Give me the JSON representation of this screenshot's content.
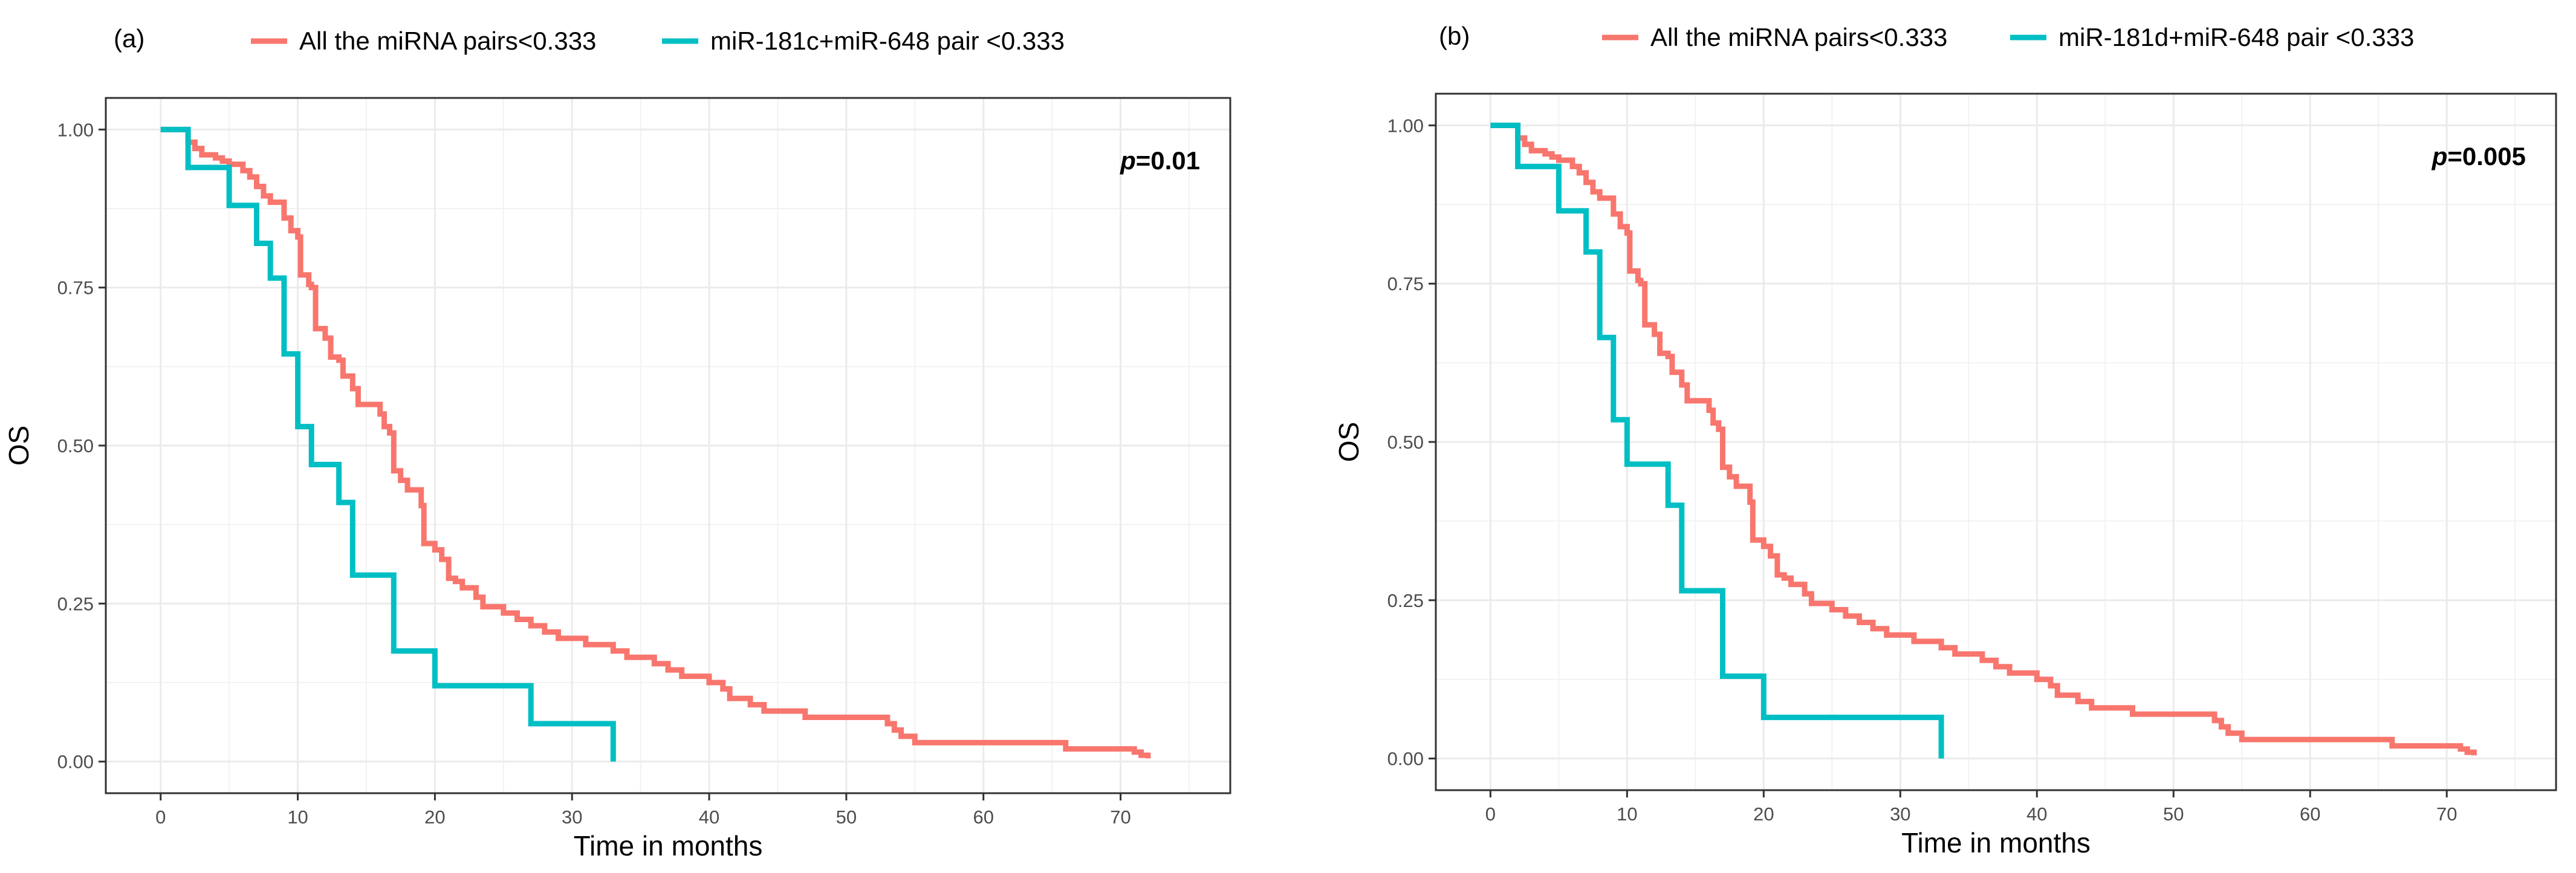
{
  "chart_data": [
    {
      "type": "line",
      "step": true,
      "panel_label": "(a)",
      "xlabel": "Time in months",
      "ylabel": "OS",
      "xlim": [
        -4,
        78
      ],
      "ylim": [
        -0.05,
        1.05
      ],
      "x_ticks": [
        0,
        10,
        20,
        30,
        40,
        50,
        60,
        70
      ],
      "y_ticks": [
        0.0,
        0.25,
        0.5,
        0.75,
        1.0
      ],
      "y_tick_labels": [
        "0.00",
        "0.25",
        "0.50",
        "0.75",
        "1.00"
      ],
      "grid": true,
      "legend_position": "top",
      "annotation": {
        "label": "p",
        "value": "=0.01"
      },
      "series": [
        {
          "name": "All the miRNA pairs<0.333",
          "color": "#F8766D",
          "points": [
            [
              0,
              1.0
            ],
            [
              2,
              0.98
            ],
            [
              2.5,
              0.97
            ],
            [
              3,
              0.96
            ],
            [
              4,
              0.955
            ],
            [
              4.5,
              0.95
            ],
            [
              5,
              0.945
            ],
            [
              6,
              0.935
            ],
            [
              6.5,
              0.925
            ],
            [
              7,
              0.91
            ],
            [
              7.5,
              0.895
            ],
            [
              8,
              0.885
            ],
            [
              9,
              0.86
            ],
            [
              9.5,
              0.84
            ],
            [
              10,
              0.83
            ],
            [
              10.2,
              0.77
            ],
            [
              10.8,
              0.755
            ],
            [
              11,
              0.75
            ],
            [
              11.3,
              0.685
            ],
            [
              12,
              0.67
            ],
            [
              12.4,
              0.64
            ],
            [
              13,
              0.635
            ],
            [
              13.3,
              0.61
            ],
            [
              14,
              0.59
            ],
            [
              14.4,
              0.565
            ],
            [
              15,
              0.565
            ],
            [
              16,
              0.55
            ],
            [
              16.3,
              0.53
            ],
            [
              16.7,
              0.52
            ],
            [
              17,
              0.46
            ],
            [
              17.5,
              0.445
            ],
            [
              18,
              0.43
            ],
            [
              19,
              0.405
            ],
            [
              19.2,
              0.345
            ],
            [
              20,
              0.335
            ],
            [
              20.5,
              0.32
            ],
            [
              21,
              0.29
            ],
            [
              21.5,
              0.285
            ],
            [
              22,
              0.275
            ],
            [
              23,
              0.26
            ],
            [
              23.5,
              0.245
            ],
            [
              25,
              0.235
            ],
            [
              26,
              0.225
            ],
            [
              27,
              0.215
            ],
            [
              28,
              0.205
            ],
            [
              29,
              0.195
            ],
            [
              31,
              0.185
            ],
            [
              33,
              0.175
            ],
            [
              34,
              0.165
            ],
            [
              36,
              0.155
            ],
            [
              37,
              0.145
            ],
            [
              38,
              0.135
            ],
            [
              40,
              0.125
            ],
            [
              41,
              0.115
            ],
            [
              41.5,
              0.1
            ],
            [
              43,
              0.09
            ],
            [
              44,
              0.08
            ],
            [
              47,
              0.07
            ],
            [
              53,
              0.06
            ],
            [
              53.5,
              0.05
            ],
            [
              54,
              0.04
            ],
            [
              55,
              0.03
            ],
            [
              66,
              0.02
            ],
            [
              71,
              0.015
            ],
            [
              71.5,
              0.01
            ],
            [
              72,
              0.005
            ]
          ]
        },
        {
          "name": "miR-181c+miR-648 pair <0.333",
          "color": "#00BFC4",
          "points": [
            [
              0,
              1.0
            ],
            [
              2,
              0.94
            ],
            [
              5,
              0.88
            ],
            [
              7,
              0.82
            ],
            [
              8,
              0.765
            ],
            [
              9,
              0.645
            ],
            [
              10,
              0.53
            ],
            [
              11,
              0.47
            ],
            [
              13,
              0.41
            ],
            [
              14,
              0.295
            ],
            [
              17,
              0.175
            ],
            [
              20,
              0.12
            ],
            [
              27,
              0.06
            ],
            [
              33,
              0.0
            ]
          ]
        }
      ]
    },
    {
      "type": "line",
      "step": true,
      "panel_label": "(b)",
      "xlabel": "Time in months",
      "ylabel": "OS",
      "xlim": [
        -4,
        78
      ],
      "ylim": [
        -0.05,
        1.05
      ],
      "x_ticks": [
        0,
        10,
        20,
        30,
        40,
        50,
        60,
        70
      ],
      "y_ticks": [
        0.0,
        0.25,
        0.5,
        0.75,
        1.0
      ],
      "y_tick_labels": [
        "0.00",
        "0.25",
        "0.50",
        "0.75",
        "1.00"
      ],
      "grid": true,
      "legend_position": "top",
      "annotation": {
        "label": "p",
        "value": "=0.005"
      },
      "series": [
        {
          "name": "All the miRNA pairs<0.333",
          "color": "#F8766D",
          "points": [
            [
              0,
              1.0
            ],
            [
              2,
              0.98
            ],
            [
              2.5,
              0.97
            ],
            [
              3,
              0.96
            ],
            [
              4,
              0.955
            ],
            [
              4.5,
              0.95
            ],
            [
              5,
              0.945
            ],
            [
              6,
              0.935
            ],
            [
              6.5,
              0.925
            ],
            [
              7,
              0.91
            ],
            [
              7.5,
              0.895
            ],
            [
              8,
              0.885
            ],
            [
              9,
              0.86
            ],
            [
              9.5,
              0.84
            ],
            [
              10,
              0.83
            ],
            [
              10.2,
              0.77
            ],
            [
              10.8,
              0.755
            ],
            [
              11,
              0.75
            ],
            [
              11.3,
              0.685
            ],
            [
              12,
              0.67
            ],
            [
              12.4,
              0.64
            ],
            [
              13,
              0.635
            ],
            [
              13.3,
              0.61
            ],
            [
              14,
              0.59
            ],
            [
              14.4,
              0.565
            ],
            [
              15,
              0.565
            ],
            [
              16,
              0.55
            ],
            [
              16.3,
              0.53
            ],
            [
              16.7,
              0.52
            ],
            [
              17,
              0.46
            ],
            [
              17.5,
              0.445
            ],
            [
              18,
              0.43
            ],
            [
              19,
              0.405
            ],
            [
              19.2,
              0.345
            ],
            [
              20,
              0.335
            ],
            [
              20.5,
              0.32
            ],
            [
              21,
              0.29
            ],
            [
              21.5,
              0.285
            ],
            [
              22,
              0.275
            ],
            [
              23,
              0.26
            ],
            [
              23.5,
              0.245
            ],
            [
              25,
              0.235
            ],
            [
              26,
              0.225
            ],
            [
              27,
              0.215
            ],
            [
              28,
              0.205
            ],
            [
              29,
              0.195
            ],
            [
              31,
              0.185
            ],
            [
              33,
              0.175
            ],
            [
              34,
              0.165
            ],
            [
              36,
              0.155
            ],
            [
              37,
              0.145
            ],
            [
              38,
              0.135
            ],
            [
              40,
              0.125
            ],
            [
              41,
              0.115
            ],
            [
              41.5,
              0.1
            ],
            [
              43,
              0.09
            ],
            [
              44,
              0.08
            ],
            [
              47,
              0.07
            ],
            [
              53,
              0.06
            ],
            [
              53.5,
              0.05
            ],
            [
              54,
              0.04
            ],
            [
              55,
              0.03
            ],
            [
              66,
              0.02
            ],
            [
              71,
              0.015
            ],
            [
              71.5,
              0.01
            ],
            [
              72,
              0.005
            ]
          ]
        },
        {
          "name": "miR-181d+miR-648 pair <0.333",
          "color": "#00BFC4",
          "points": [
            [
              0,
              1.0
            ],
            [
              2,
              0.935
            ],
            [
              5,
              0.865
            ],
            [
              7,
              0.8
            ],
            [
              8,
              0.665
            ],
            [
              9,
              0.535
            ],
            [
              10,
              0.465
            ],
            [
              13,
              0.4
            ],
            [
              14,
              0.265
            ],
            [
              17,
              0.13
            ],
            [
              20,
              0.065
            ],
            [
              33,
              0.0
            ]
          ]
        }
      ]
    }
  ]
}
